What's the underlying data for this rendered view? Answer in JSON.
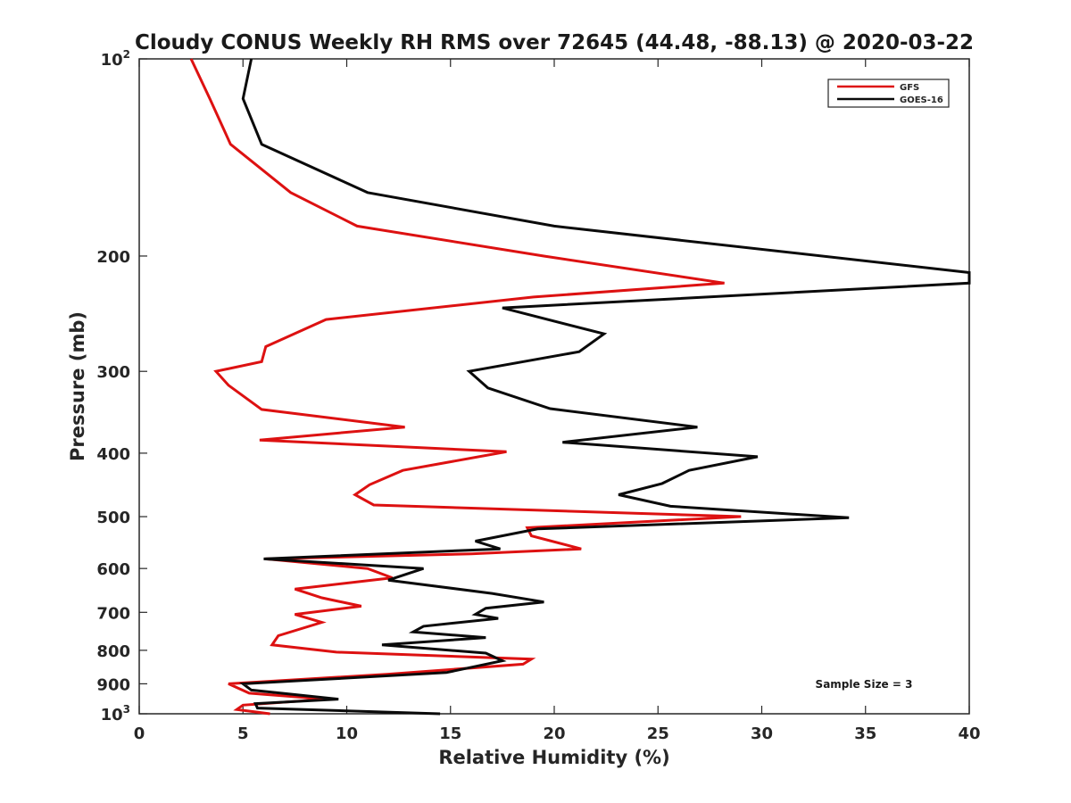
{
  "chart_data": {
    "type": "line",
    "title": "Cloudy CONUS Weekly RH RMS over 72645 (44.48, -88.13) @ 2020-03-22",
    "xlabel": "Relative Humidity (%)",
    "ylabel": "Pressure (mb)",
    "xlim": [
      0,
      40
    ],
    "ylim": [
      100,
      1000
    ],
    "yscale": "log",
    "y_reversed": true,
    "grid": false,
    "legend_position": "top-right",
    "annotation": "Sample Size = 3",
    "xticks": [
      {
        "value": 0,
        "label": "0"
      },
      {
        "value": 5,
        "label": "5"
      },
      {
        "value": 10,
        "label": "10"
      },
      {
        "value": 15,
        "label": "15"
      },
      {
        "value": 20,
        "label": "20"
      },
      {
        "value": 25,
        "label": "25"
      },
      {
        "value": 30,
        "label": "30"
      },
      {
        "value": 35,
        "label": "35"
      },
      {
        "value": 40,
        "label": "40"
      }
    ],
    "yticks": [
      {
        "value": 100,
        "base": "10",
        "sup": "2"
      },
      {
        "value": 200,
        "base": "200",
        "sup": ""
      },
      {
        "value": 300,
        "base": "300",
        "sup": ""
      },
      {
        "value": 400,
        "base": "400",
        "sup": ""
      },
      {
        "value": 500,
        "base": "500",
        "sup": ""
      },
      {
        "value": 600,
        "base": "600",
        "sup": ""
      },
      {
        "value": 700,
        "base": "700",
        "sup": ""
      },
      {
        "value": 800,
        "base": "800",
        "sup": ""
      },
      {
        "value": 900,
        "base": "900",
        "sup": ""
      },
      {
        "value": 1000,
        "base": "10",
        "sup": "3"
      }
    ],
    "series": [
      {
        "name": "GFS",
        "color": "#dd1111",
        "points": [
          [
            2.5,
            100
          ],
          [
            3.4,
            115
          ],
          [
            4.4,
            135
          ],
          [
            7.3,
            160
          ],
          [
            10.5,
            180
          ],
          [
            19.5,
            200
          ],
          [
            28.2,
            220
          ],
          [
            19.0,
            231
          ],
          [
            9.0,
            250
          ],
          [
            6.1,
            275
          ],
          [
            5.9,
            290
          ],
          [
            3.7,
            300
          ],
          [
            4.3,
            315
          ],
          [
            5.9,
            343
          ],
          [
            12.8,
            365
          ],
          [
            5.8,
            382
          ],
          [
            17.7,
            398
          ],
          [
            12.7,
            425
          ],
          [
            11.1,
            447
          ],
          [
            10.4,
            463
          ],
          [
            11.3,
            480
          ],
          [
            29.0,
            500
          ],
          [
            18.7,
            520
          ],
          [
            18.9,
            535
          ],
          [
            21.3,
            560
          ],
          [
            16.0,
            570
          ],
          [
            6.1,
            580
          ],
          [
            11.0,
            600
          ],
          [
            12.2,
            620
          ],
          [
            7.5,
            645
          ],
          [
            8.8,
            665
          ],
          [
            10.7,
            685
          ],
          [
            7.5,
            705
          ],
          [
            8.8,
            725
          ],
          [
            6.7,
            760
          ],
          [
            6.4,
            785
          ],
          [
            9.5,
            805
          ],
          [
            18.9,
            825
          ],
          [
            18.5,
            840
          ],
          [
            12.0,
            870
          ],
          [
            4.3,
            900
          ],
          [
            5.3,
            930
          ],
          [
            9.0,
            950
          ],
          [
            5.0,
            970
          ],
          [
            4.7,
            985
          ],
          [
            6.3,
            1000
          ]
        ]
      },
      {
        "name": "GOES-16",
        "color": "#0a0a0a",
        "points": [
          [
            5.4,
            100
          ],
          [
            5.0,
            115
          ],
          [
            5.9,
            135
          ],
          [
            11.0,
            160
          ],
          [
            20.0,
            180
          ],
          [
            40.0,
            212
          ],
          [
            40.0,
            220
          ],
          [
            17.5,
            240
          ],
          [
            22.4,
            263
          ],
          [
            21.2,
            280
          ],
          [
            15.9,
            300
          ],
          [
            16.8,
            318
          ],
          [
            19.8,
            342
          ],
          [
            26.9,
            365
          ],
          [
            20.4,
            385
          ],
          [
            29.8,
            405
          ],
          [
            26.5,
            425
          ],
          [
            25.2,
            445
          ],
          [
            23.1,
            463
          ],
          [
            25.6,
            482
          ],
          [
            34.2,
            502
          ],
          [
            19.2,
            522
          ],
          [
            16.2,
            545
          ],
          [
            17.4,
            560
          ],
          [
            6.0,
            580
          ],
          [
            13.7,
            600
          ],
          [
            12.0,
            625
          ],
          [
            17.0,
            655
          ],
          [
            19.5,
            675
          ],
          [
            16.7,
            690
          ],
          [
            16.2,
            705
          ],
          [
            17.3,
            715
          ],
          [
            13.7,
            735
          ],
          [
            13.2,
            750
          ],
          [
            16.7,
            765
          ],
          [
            11.7,
            785
          ],
          [
            16.7,
            808
          ],
          [
            17.5,
            830
          ],
          [
            14.8,
            865
          ],
          [
            5.0,
            900
          ],
          [
            5.4,
            920
          ],
          [
            9.6,
            950
          ],
          [
            5.6,
            965
          ],
          [
            5.7,
            980
          ],
          [
            14.5,
            1000
          ]
        ]
      }
    ]
  }
}
